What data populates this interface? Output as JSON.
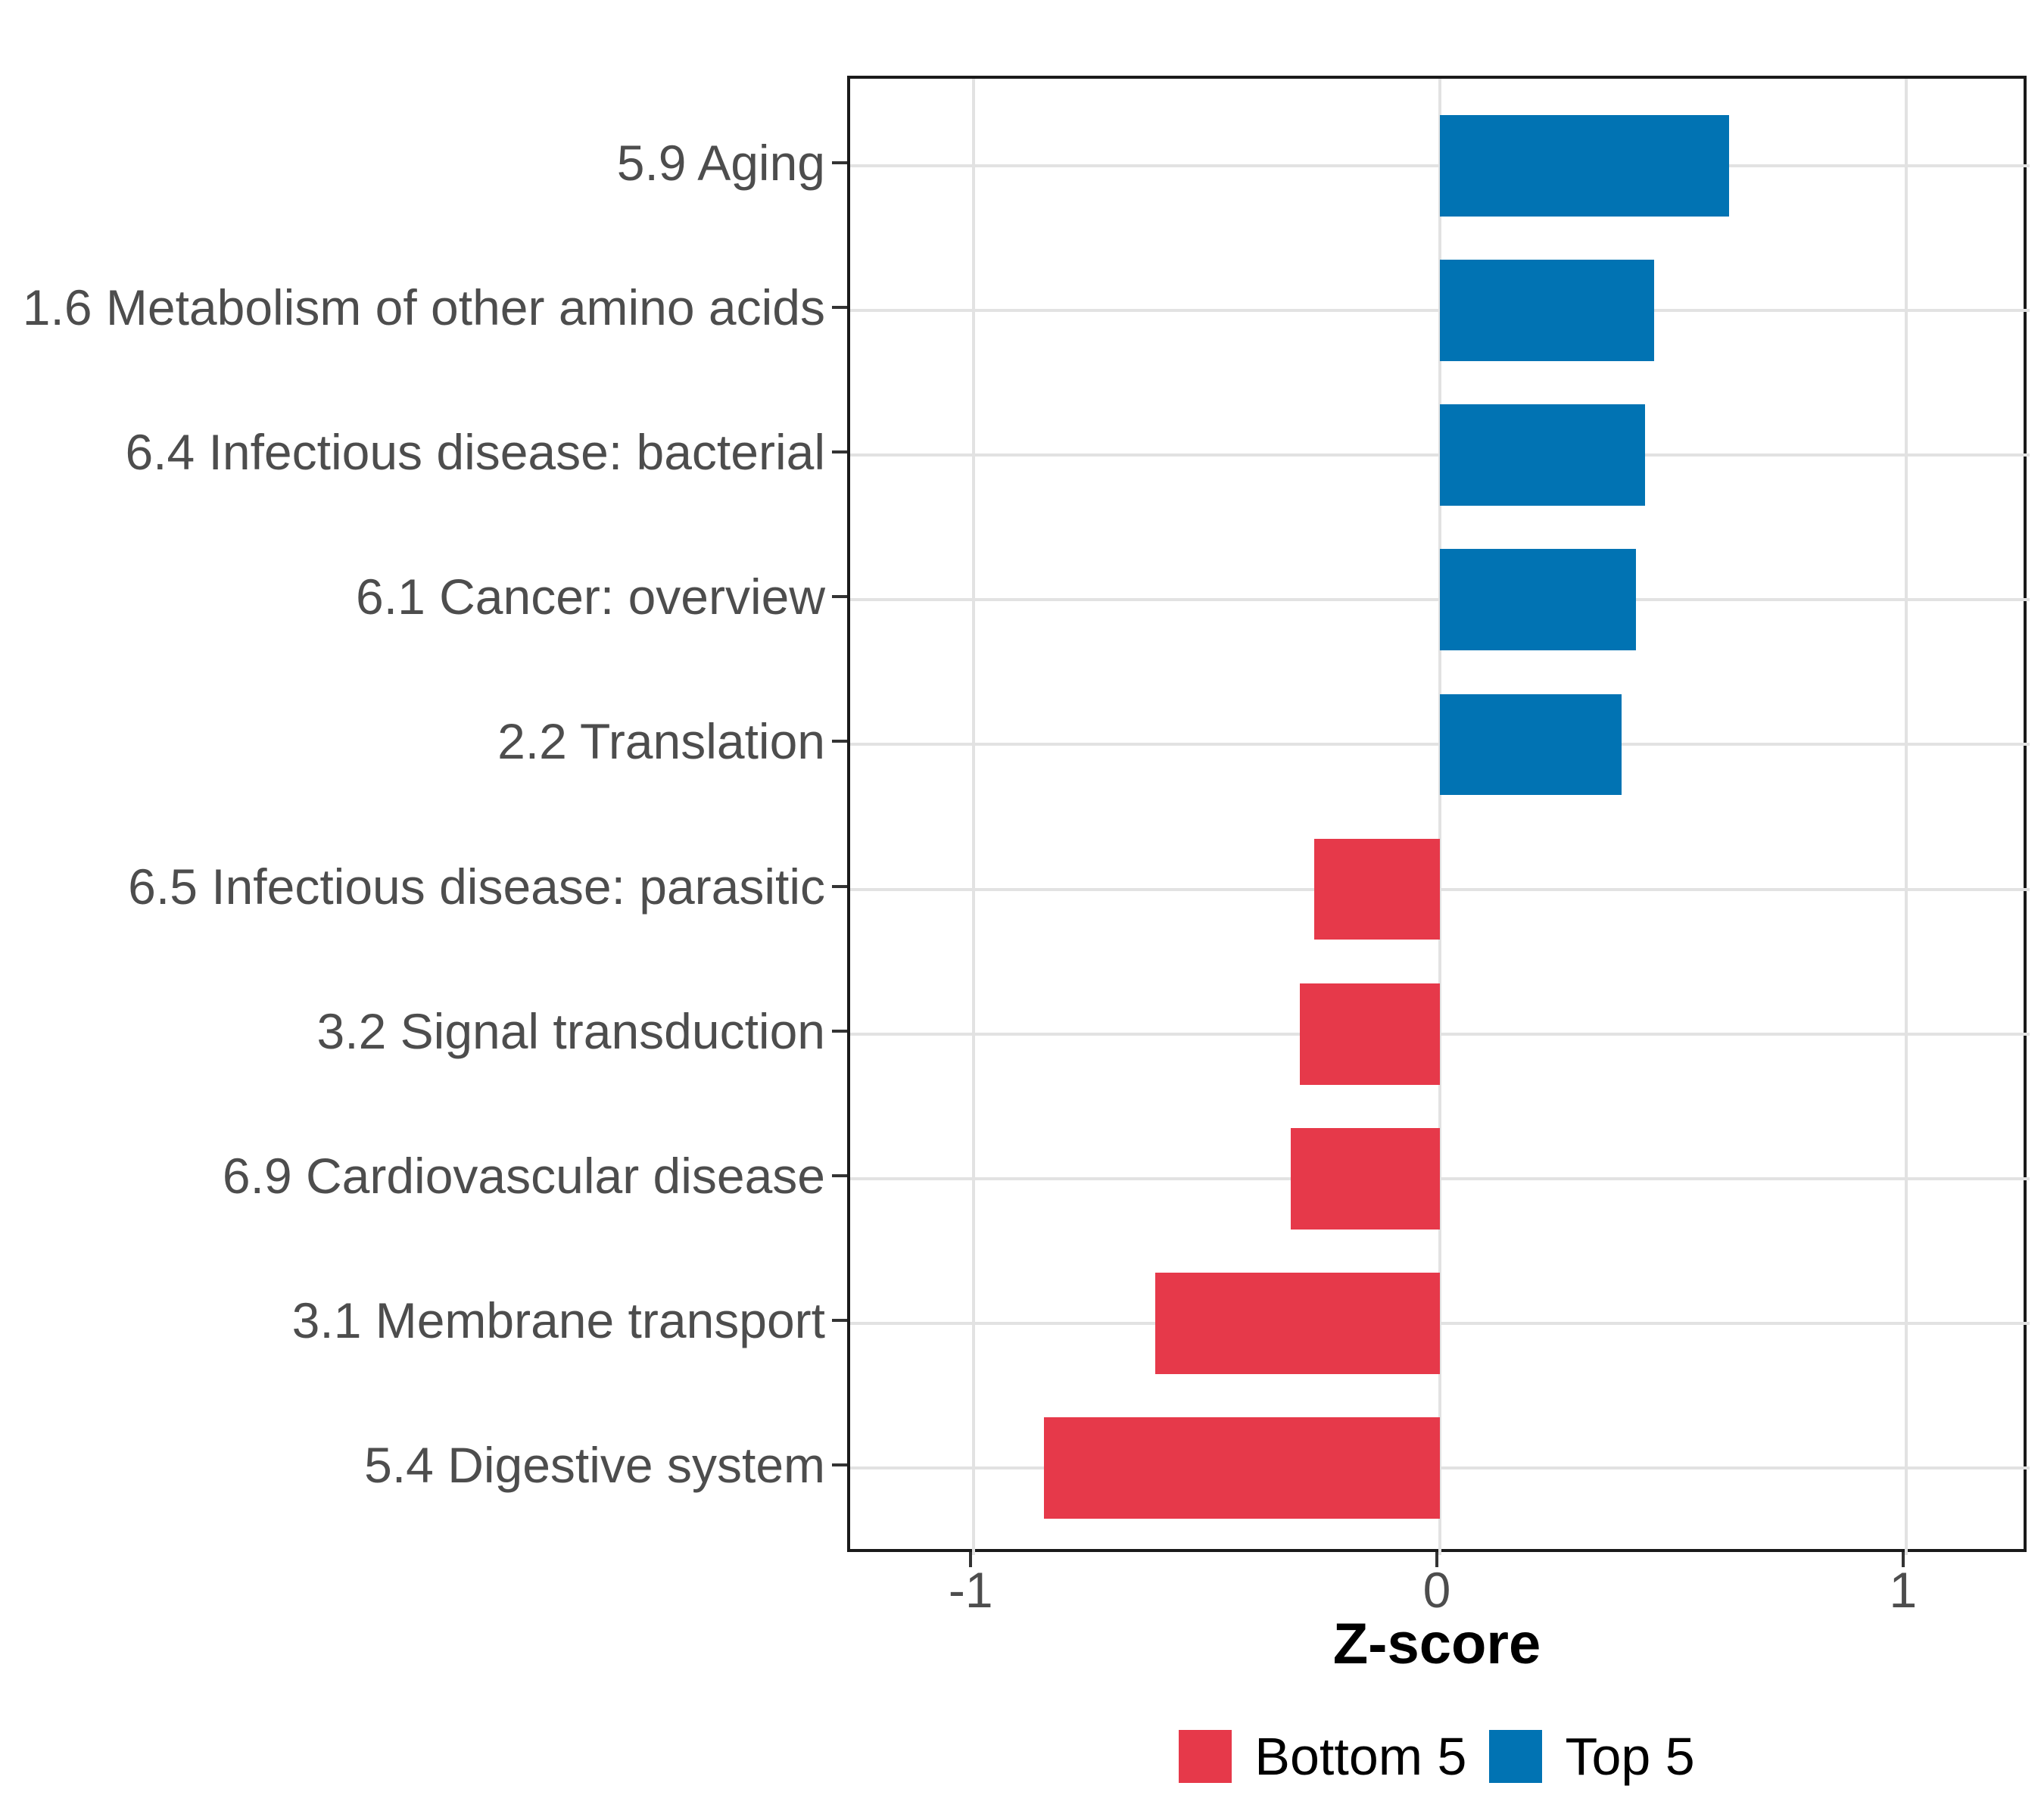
{
  "chart_data": {
    "type": "bar",
    "orientation": "horizontal",
    "title": "",
    "xlabel": "Z-score",
    "ylabel": "",
    "xlim": [
      -1.265,
      1.265
    ],
    "grid": "major-only",
    "x_ticks": [
      {
        "value": -1,
        "label": "-1"
      },
      {
        "value": 0,
        "label": "0"
      },
      {
        "value": 1,
        "label": "1"
      }
    ],
    "bars": [
      {
        "category": "5.9 Aging",
        "value": 0.62,
        "group": "Top 5"
      },
      {
        "category": "1.6 Metabolism of other amino acids",
        "value": 0.46,
        "group": "Top 5"
      },
      {
        "category": "6.4 Infectious disease: bacterial",
        "value": 0.44,
        "group": "Top 5"
      },
      {
        "category": "6.1 Cancer: overview",
        "value": 0.42,
        "group": "Top 5"
      },
      {
        "category": "2.2 Translation",
        "value": 0.39,
        "group": "Top 5"
      },
      {
        "category": "6.5 Infectious disease: parasitic",
        "value": -0.27,
        "group": "Bottom 5"
      },
      {
        "category": "3.2 Signal transduction",
        "value": -0.3,
        "group": "Bottom 5"
      },
      {
        "category": "6.9 Cardiovascular disease",
        "value": -0.32,
        "group": "Bottom 5"
      },
      {
        "category": "3.1 Membrane transport",
        "value": -0.61,
        "group": "Bottom 5"
      },
      {
        "category": "5.4 Digestive system",
        "value": -0.85,
        "group": "Bottom 5"
      }
    ],
    "colors": {
      "negative": "#e6394a",
      "positive": "#0173b3",
      "grid": "#e2e2e2",
      "axis_text": "#4d4d4d",
      "panel_border": "#1a1a1a"
    },
    "legend": {
      "position": "bottom",
      "items": [
        {
          "label": "Bottom 5",
          "color": "#e6394a"
        },
        {
          "label": "Top 5",
          "color": "#0173b3"
        }
      ]
    }
  }
}
